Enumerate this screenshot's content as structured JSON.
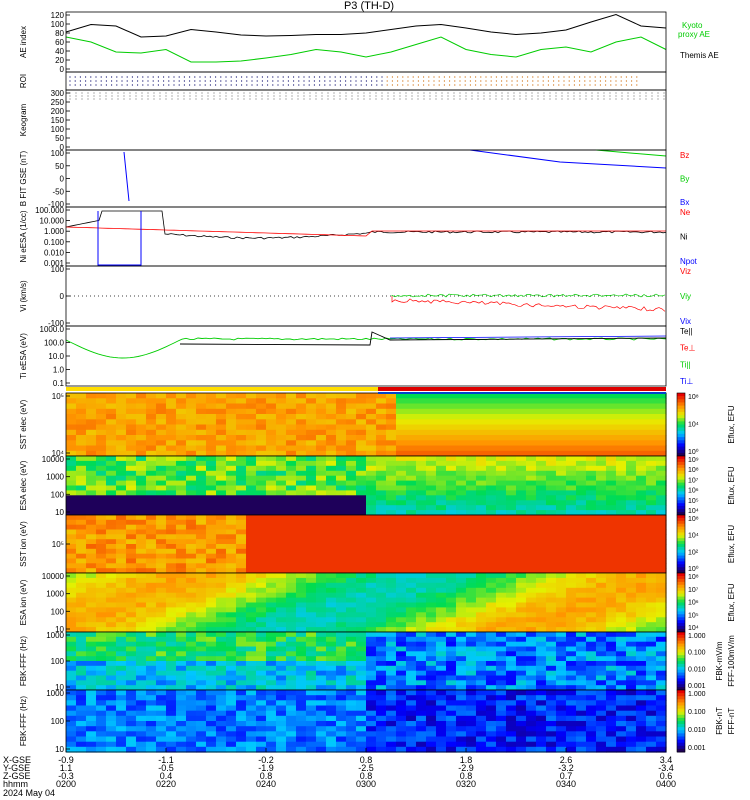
{
  "title": "P3 (TH-D)",
  "date_label": "2024 May 04",
  "footer_labels": [
    "X-GSE",
    "Y-GSE",
    "Z-GSE",
    "hhmm"
  ],
  "xticks": [
    {
      "time": "0200",
      "x": "-0.9",
      "y": "1.1",
      "z": "-0.3"
    },
    {
      "time": "0220",
      "x": "-1.1",
      "y": "-0.5",
      "z": "0.4"
    },
    {
      "time": "0240",
      "x": "-0.2",
      "y": "-1.9",
      "z": "0.8"
    },
    {
      "time": "0300",
      "x": "0.8",
      "y": "-2.5",
      "z": "0.8"
    },
    {
      "time": "0320",
      "x": "1.8",
      "y": "-2.9",
      "z": "0.8"
    },
    {
      "time": "0340",
      "x": "2.6",
      "y": "-3.2",
      "z": "0.7"
    },
    {
      "time": "0400",
      "x": "3.4",
      "y": "-3.4",
      "z": "0.6"
    }
  ],
  "colors": {
    "black": "#000000",
    "green": "#00cc00",
    "red": "#ff0000",
    "blue": "#0000ff"
  },
  "chart_data": [
    {
      "type": "line",
      "id": "ae",
      "ylabel": "AE index",
      "yticks": [
        "120",
        "100",
        "80",
        "60",
        "40",
        "20",
        "0"
      ],
      "ylim": [
        0,
        120
      ],
      "legend": [
        {
          "name": "Kyoto proxy AE",
          "color": "#00cc00"
        },
        {
          "name": "Themis AE",
          "color": "#000000"
        }
      ],
      "x": [
        0,
        5,
        10,
        15,
        20,
        25,
        30,
        35,
        40,
        45,
        50,
        55,
        60,
        65,
        70,
        75,
        80,
        85,
        90,
        95,
        100,
        105,
        110,
        115,
        120
      ],
      "series": [
        {
          "name": "Themis AE",
          "values": [
            80,
            95,
            92,
            70,
            72,
            85,
            80,
            74,
            72,
            73,
            75,
            75,
            78,
            85,
            92,
            95,
            88,
            80,
            75,
            78,
            84,
            100,
            115,
            92,
            88
          ]
        },
        {
          "name": "Kyoto proxy AE",
          "values": [
            70,
            60,
            40,
            38,
            45,
            20,
            20,
            22,
            28,
            35,
            45,
            40,
            30,
            40,
            55,
            70,
            45,
            35,
            30,
            45,
            50,
            40,
            60,
            70,
            45
          ]
        }
      ]
    },
    {
      "type": "scatter",
      "id": "roi",
      "ylabel": "ROI"
    },
    {
      "type": "heatmap",
      "id": "keogram",
      "ylabel": "Keogram",
      "yticks": [
        "300",
        "250",
        "200",
        "150",
        "100",
        "50",
        "0"
      ]
    },
    {
      "type": "line",
      "id": "bfield",
      "ylabel": "B FIT GSE (nT)",
      "yticks": [
        "100",
        "50",
        "0",
        "-50",
        "-100"
      ],
      "ylim": [
        -100,
        100
      ],
      "legend": [
        {
          "name": "Bz",
          "color": "#ff0000"
        },
        {
          "name": "By",
          "color": "#00cc00"
        },
        {
          "name": "Bx",
          "color": "#0000ff"
        }
      ]
    },
    {
      "type": "line",
      "id": "density",
      "ylabel": "Ni eESA (1/cc)",
      "yticks": [
        "100.000",
        "10.000",
        "1.000",
        "0.100",
        "0.010",
        "0.001"
      ],
      "log": true,
      "legend": [
        {
          "name": "Ne",
          "color": "#ff0000"
        },
        {
          "name": "Ni",
          "color": "#000000"
        },
        {
          "name": "Npot",
          "color": "#0000ff"
        }
      ]
    },
    {
      "type": "line",
      "id": "velocity",
      "ylabel": "Vi (km/s)",
      "yticks": [
        "100",
        "0",
        "-100"
      ],
      "ylim": [
        -150,
        150
      ],
      "legend": [
        {
          "name": "Viz",
          "color": "#ff0000"
        },
        {
          "name": "Viy",
          "color": "#00cc00"
        },
        {
          "name": "Vix",
          "color": "#0000ff"
        }
      ]
    },
    {
      "type": "line",
      "id": "temperature",
      "ylabel": "Ti eESA (eV)",
      "yticks": [
        "1000.0",
        "100.0",
        "10.0",
        "1.0",
        "0.1"
      ],
      "log": true,
      "legend": [
        {
          "name": "Te||",
          "color": "#000000"
        },
        {
          "name": "Te⊥",
          "color": "#ff0000"
        },
        {
          "name": "Ti||",
          "color": "#00cc00"
        },
        {
          "name": "Ti⊥",
          "color": "#0000ff"
        }
      ]
    },
    {
      "type": "heatmap",
      "id": "sst-e",
      "ylabel": "SST elec (eV)",
      "yticks": [
        "10⁵",
        "10⁴"
      ],
      "cbar_label": "Eflux, EFU",
      "cbar_ticks": [
        "10⁸",
        "10⁴",
        "10⁰"
      ]
    },
    {
      "type": "heatmap",
      "id": "esa-e",
      "ylabel": "ESA elec (eV)",
      "yticks": [
        "10000",
        "1000",
        "100",
        "10"
      ],
      "cbar_label": "Eflux, EFU",
      "cbar_ticks": [
        "10⁹",
        "10⁸",
        "10⁷",
        "10⁶",
        "10⁵",
        "10⁴"
      ]
    },
    {
      "type": "heatmap",
      "id": "sst-i",
      "ylabel": "SST ion (eV)",
      "yticks": [
        "10⁵"
      ],
      "cbar_label": "Eflux, EFU",
      "cbar_ticks": [
        "10⁸",
        "10⁴",
        "10²",
        "10⁰"
      ]
    },
    {
      "type": "heatmap",
      "id": "esa-i",
      "ylabel": "ESA ion (eV)",
      "yticks": [
        "10000",
        "1000",
        "100",
        "10"
      ],
      "cbar_label": "Eflux, EFU",
      "cbar_ticks": [
        "10⁸",
        "10⁷",
        "10⁶",
        "10⁵",
        "10⁴"
      ]
    },
    {
      "type": "heatmap",
      "id": "fbk-ffff",
      "ylabel": "FBK-FFF (Hz)",
      "yticks": [
        "1000",
        "100",
        "10"
      ],
      "cbar_label": "FFF-100mV/m",
      "cbar_label2": "FBK-mV/m",
      "cbar_ticks": [
        "1.000",
        "0.100",
        "0.010",
        "0.001"
      ]
    },
    {
      "type": "heatmap",
      "id": "fbk-fffb",
      "ylabel": "FBK-FFF (Hz)",
      "yticks": [
        "1000",
        "100",
        "10"
      ],
      "cbar_label": "FFF-nT",
      "cbar_label2": "FBK-nT",
      "cbar_ticks": [
        "1.000",
        "0.100",
        "0.010",
        "0.001"
      ]
    }
  ]
}
